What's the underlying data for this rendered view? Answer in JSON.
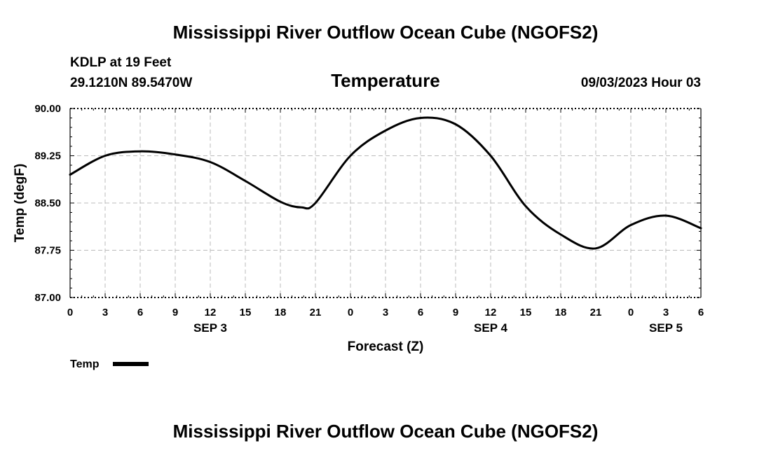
{
  "header": {
    "title": "Mississippi River Outflow Ocean Cube (NGOFS2)",
    "station": "KDLP at 19 Feet",
    "coords": "29.1210N  89.5470W",
    "datetime": "09/03/2023 Hour 03"
  },
  "footer": {
    "title": "Mississippi River Outflow Ocean Cube (NGOFS2)"
  },
  "legend": {
    "label": "Temp"
  },
  "colors": {
    "line": "#000000",
    "grid": "#bbbbbb",
    "axis": "#000000"
  },
  "chart_data": {
    "type": "line",
    "title": "Temperature",
    "xlabel": "Forecast (Z)",
    "ylabel": "Temp (degF)",
    "ylim": [
      87.0,
      90.0
    ],
    "yticks": [
      "87.00",
      "87.75",
      "88.50",
      "89.25",
      "90.00"
    ],
    "ytick_values": [
      87.0,
      87.75,
      88.5,
      89.25,
      90.0
    ],
    "xlim": [
      0,
      54
    ],
    "xtick_values": [
      0,
      3,
      6,
      9,
      12,
      15,
      18,
      21,
      24,
      27,
      30,
      33,
      36,
      39,
      42,
      45,
      48,
      51,
      54
    ],
    "xtick_labels": [
      "0",
      "3",
      "6",
      "9",
      "12",
      "15",
      "18",
      "21",
      "0",
      "3",
      "6",
      "9",
      "12",
      "15",
      "18",
      "21",
      "0",
      "3",
      "6"
    ],
    "date_labels": [
      {
        "label": "SEP 3",
        "x": 12
      },
      {
        "label": "SEP 4",
        "x": 36
      },
      {
        "label": "SEP 5",
        "x": 51
      }
    ],
    "grid": true,
    "series": [
      {
        "name": "Temp",
        "x": [
          0,
          3,
          6,
          9,
          12,
          15,
          18,
          19.8,
          21,
          24,
          27,
          30,
          33,
          36,
          39,
          42,
          45,
          48,
          51,
          54
        ],
        "values": [
          88.95,
          89.25,
          89.32,
          89.27,
          89.15,
          88.85,
          88.52,
          88.43,
          88.5,
          89.25,
          89.65,
          89.85,
          89.75,
          89.25,
          88.45,
          88.0,
          87.78,
          88.15,
          88.3,
          88.1
        ]
      }
    ]
  }
}
